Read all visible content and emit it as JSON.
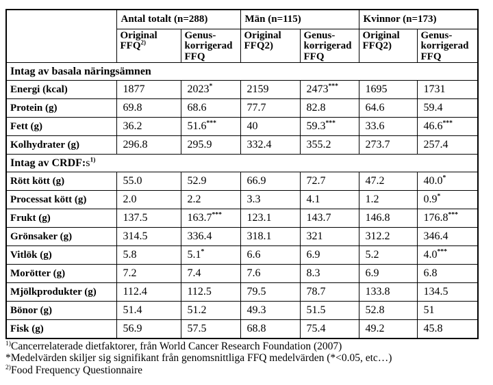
{
  "table": {
    "groups": [
      {
        "label": "Antal totalt (n=288)"
      },
      {
        "label": "Män (n=115)"
      },
      {
        "label": "Kvinnor (n=173)"
      }
    ],
    "sub_headers": [
      {
        "text": "Original\nFFQ",
        "sup": "2)"
      },
      {
        "text": "Genus-\nkorrigerad\nFFQ",
        "sup": ""
      },
      {
        "text": "Original\nFFQ2)",
        "sup": ""
      },
      {
        "text": "Genus-\nkorrigerad\nFFQ",
        "sup": ""
      },
      {
        "text": "Original\nFFQ2)",
        "sup": ""
      },
      {
        "text": "Genus-\nkorrigerad\nFFQ",
        "sup": ""
      }
    ],
    "rows": [
      {
        "type": "section",
        "bold": "Intag av basala näringsämnen",
        "normal": "",
        "sup": ""
      },
      {
        "type": "data",
        "label": "Energi (kcal)",
        "values": [
          {
            "v": "1877",
            "sup": ""
          },
          {
            "v": "2023",
            "sup": "*"
          },
          {
            "v": "2159",
            "sup": ""
          },
          {
            "v": "2473",
            "sup": "***"
          },
          {
            "v": "1695",
            "sup": ""
          },
          {
            "v": "1731",
            "sup": ""
          }
        ]
      },
      {
        "type": "data",
        "label": "Protein (g)",
        "values": [
          {
            "v": "69.8",
            "sup": ""
          },
          {
            "v": "68.6",
            "sup": ""
          },
          {
            "v": "77.7",
            "sup": ""
          },
          {
            "v": "82.8",
            "sup": ""
          },
          {
            "v": "64.6",
            "sup": ""
          },
          {
            "v": "59.4",
            "sup": ""
          }
        ]
      },
      {
        "type": "data",
        "label": "Fett (g)",
        "values": [
          {
            "v": "36.2",
            "sup": ""
          },
          {
            "v": "51.6",
            "sup": "***"
          },
          {
            "v": "40",
            "sup": ""
          },
          {
            "v": "59.3",
            "sup": "***"
          },
          {
            "v": "33.6",
            "sup": ""
          },
          {
            "v": "46.6",
            "sup": "***"
          }
        ]
      },
      {
        "type": "data",
        "label": "Kolhydrater (g)",
        "values": [
          {
            "v": "296.8",
            "sup": ""
          },
          {
            "v": "295.9",
            "sup": ""
          },
          {
            "v": "332.4",
            "sup": ""
          },
          {
            "v": "355.2",
            "sup": ""
          },
          {
            "v": "273.7",
            "sup": ""
          },
          {
            "v": "257.4",
            "sup": ""
          }
        ]
      },
      {
        "type": "section",
        "bold": "Intag av CRDF:",
        "normal": "s",
        "sup": "1)"
      },
      {
        "type": "data",
        "label": "Rött kött (g)",
        "values": [
          {
            "v": "55.0",
            "sup": ""
          },
          {
            "v": "52.9",
            "sup": ""
          },
          {
            "v": "66.9",
            "sup": ""
          },
          {
            "v": "72.7",
            "sup": ""
          },
          {
            "v": "47.2",
            "sup": ""
          },
          {
            "v": "40.0",
            "sup": "*"
          }
        ]
      },
      {
        "type": "data",
        "label": "Processat kött (g)",
        "values": [
          {
            "v": "2.0",
            "sup": ""
          },
          {
            "v": "2.2",
            "sup": ""
          },
          {
            "v": "3.3",
            "sup": ""
          },
          {
            "v": "4.1",
            "sup": ""
          },
          {
            "v": "1.2",
            "sup": ""
          },
          {
            "v": "0.9",
            "sup": "*"
          }
        ]
      },
      {
        "type": "data",
        "label": "Frukt (g)",
        "values": [
          {
            "v": "137.5",
            "sup": ""
          },
          {
            "v": "163.7",
            "sup": "***"
          },
          {
            "v": "123.1",
            "sup": ""
          },
          {
            "v": "143.7",
            "sup": ""
          },
          {
            "v": "146.8",
            "sup": ""
          },
          {
            "v": "176.8",
            "sup": "***"
          }
        ]
      },
      {
        "type": "data",
        "label": "Grönsaker (g)",
        "values": [
          {
            "v": "314.5",
            "sup": ""
          },
          {
            "v": "336.4",
            "sup": ""
          },
          {
            "v": "318.1",
            "sup": ""
          },
          {
            "v": "321",
            "sup": ""
          },
          {
            "v": "312.2",
            "sup": ""
          },
          {
            "v": "346.4",
            "sup": ""
          }
        ]
      },
      {
        "type": "data",
        "label": "Vitlök (g)",
        "values": [
          {
            "v": "5.8",
            "sup": ""
          },
          {
            "v": "5.1",
            "sup": "*"
          },
          {
            "v": "6.6",
            "sup": ""
          },
          {
            "v": "6.9",
            "sup": ""
          },
          {
            "v": "5.2",
            "sup": ""
          },
          {
            "v": "4.0",
            "sup": "***"
          }
        ]
      },
      {
        "type": "data",
        "label": "Morötter (g)",
        "values": [
          {
            "v": "7.2",
            "sup": ""
          },
          {
            "v": "7.4",
            "sup": ""
          },
          {
            "v": "7.6",
            "sup": ""
          },
          {
            "v": "8.3",
            "sup": ""
          },
          {
            "v": "6.9",
            "sup": ""
          },
          {
            "v": "6.8",
            "sup": ""
          }
        ]
      },
      {
        "type": "data",
        "label": "Mjölkprodukter (g)",
        "values": [
          {
            "v": "112.4",
            "sup": ""
          },
          {
            "v": "112.5",
            "sup": ""
          },
          {
            "v": "79.5",
            "sup": ""
          },
          {
            "v": "78.7",
            "sup": ""
          },
          {
            "v": "133.8",
            "sup": ""
          },
          {
            "v": "134.5",
            "sup": ""
          }
        ]
      },
      {
        "type": "data",
        "label": "Bönor (g)",
        "values": [
          {
            "v": "51.4",
            "sup": ""
          },
          {
            "v": "51.2",
            "sup": ""
          },
          {
            "v": "49.3",
            "sup": ""
          },
          {
            "v": "51.5",
            "sup": ""
          },
          {
            "v": "52.8",
            "sup": ""
          },
          {
            "v": "51",
            "sup": ""
          }
        ]
      },
      {
        "type": "data",
        "label": "Fisk (g)",
        "values": [
          {
            "v": "56.9",
            "sup": ""
          },
          {
            "v": "57.5",
            "sup": ""
          },
          {
            "v": "68.8",
            "sup": ""
          },
          {
            "v": "75.4",
            "sup": ""
          },
          {
            "v": "49.2",
            "sup": ""
          },
          {
            "v": "45.8",
            "sup": ""
          }
        ]
      }
    ]
  },
  "footnotes": [
    {
      "sup": "1)",
      "text": "Cancerrelaterade dietfaktorer, från World Cancer Research Foundation (2007)"
    },
    {
      "sup": "",
      "text": "*Medelvärden skiljer sig signifikant från genomsnittliga FFQ medelvärden (*<0.05, etc…)"
    },
    {
      "sup": "2)",
      "text": "Food Frequency Questionnaire"
    }
  ]
}
